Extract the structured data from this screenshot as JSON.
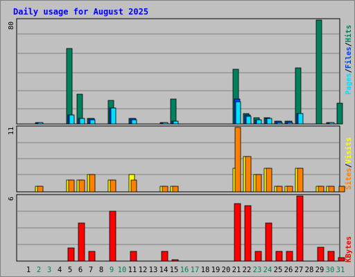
{
  "title": "Daily usage for August 2025",
  "colors": {
    "hits": "#00805c",
    "files": "#0040ff",
    "pages": "#00e0ff",
    "visits": "#ffff00",
    "sites": "#ff8000",
    "kbytes": "#ff0000",
    "weekday_label": "#000000",
    "weekend_label": "#00805c",
    "slash": "#000000"
  },
  "legends": {
    "top": [
      "Pages",
      "/",
      "Files",
      "/",
      "Hits"
    ],
    "middle": [
      "Sites",
      "/",
      "Visits"
    ],
    "bottom": [
      "KBytes"
    ]
  },
  "chart_data": [
    {
      "type": "bar",
      "panel": "hits-files-pages",
      "ymax_label": "80",
      "ylim": [
        0,
        80
      ],
      "categories": [
        "1",
        "2",
        "3",
        "4",
        "5",
        "6",
        "7",
        "8",
        "9",
        "10",
        "11",
        "12",
        "13",
        "14",
        "15",
        "16",
        "17",
        "18",
        "19",
        "20",
        "21",
        "22",
        "23",
        "24",
        "25",
        "26",
        "27",
        "28",
        "29",
        "30",
        "31"
      ],
      "series": [
        {
          "name": "Hits",
          "values": [
            0,
            1,
            0,
            0,
            58,
            23,
            4,
            0,
            18,
            0,
            4,
            0,
            0,
            1,
            19,
            0,
            0,
            0,
            0,
            0,
            42,
            8,
            5,
            5,
            2,
            2,
            43,
            0,
            80,
            1,
            16
          ]
        },
        {
          "name": "Files",
          "values": [
            0,
            1,
            0,
            0,
            7,
            4,
            4,
            0,
            12,
            0,
            4,
            0,
            0,
            1,
            2,
            0,
            0,
            0,
            0,
            0,
            19,
            7,
            3,
            4,
            2,
            2,
            8,
            0,
            0,
            1,
            0
          ]
        },
        {
          "name": "Pages",
          "values": [
            0,
            1,
            0,
            0,
            7,
            4,
            3,
            0,
            12,
            0,
            3,
            0,
            0,
            1,
            2,
            0,
            0,
            0,
            0,
            0,
            17,
            6,
            3,
            4,
            1,
            1,
            8,
            0,
            0,
            1,
            0
          ]
        }
      ]
    },
    {
      "type": "bar",
      "panel": "visits-sites",
      "ymax_label": "11",
      "ylim": [
        0,
        11
      ],
      "categories": [
        "1",
        "2",
        "3",
        "4",
        "5",
        "6",
        "7",
        "8",
        "9",
        "10",
        "11",
        "12",
        "13",
        "14",
        "15",
        "16",
        "17",
        "18",
        "19",
        "20",
        "21",
        "22",
        "23",
        "24",
        "25",
        "26",
        "27",
        "28",
        "29",
        "30",
        "31"
      ],
      "series": [
        {
          "name": "Visits",
          "values": [
            0,
            1,
            0,
            0,
            2,
            2,
            3,
            0,
            2,
            0,
            3,
            0,
            0,
            1,
            1,
            0,
            0,
            0,
            0,
            0,
            4,
            6,
            3,
            4,
            1,
            1,
            4,
            0,
            1,
            1,
            0
          ]
        },
        {
          "name": "Sites",
          "values": [
            0,
            1,
            0,
            0,
            2,
            2,
            3,
            0,
            2,
            0,
            2,
            0,
            0,
            1,
            1,
            0,
            0,
            0,
            0,
            0,
            11,
            6,
            3,
            4,
            1,
            1,
            4,
            0,
            1,
            1,
            1
          ]
        }
      ]
    },
    {
      "type": "bar",
      "panel": "kbytes",
      "ymax_label": "6",
      "ylim": [
        0,
        6
      ],
      "categories": [
        "1",
        "2",
        "3",
        "4",
        "5",
        "6",
        "7",
        "8",
        "9",
        "10",
        "11",
        "12",
        "13",
        "14",
        "15",
        "16",
        "17",
        "18",
        "19",
        "20",
        "21",
        "22",
        "23",
        "24",
        "25",
        "26",
        "27",
        "28",
        "29",
        "30",
        "31"
      ],
      "series": [
        {
          "name": "KBytes",
          "values": [
            0,
            0,
            0,
            0,
            1.2,
            3.5,
            0.9,
            0,
            4.6,
            0,
            0.9,
            0,
            0,
            0.9,
            0.1,
            0,
            0,
            0,
            0,
            0,
            5.3,
            5.1,
            0.9,
            3.5,
            0.9,
            0.9,
            6,
            0,
            1.3,
            0.9,
            0.3
          ]
        }
      ]
    }
  ],
  "weekend_days": [
    2,
    3,
    9,
    10,
    16,
    17,
    23,
    24,
    30,
    31
  ]
}
